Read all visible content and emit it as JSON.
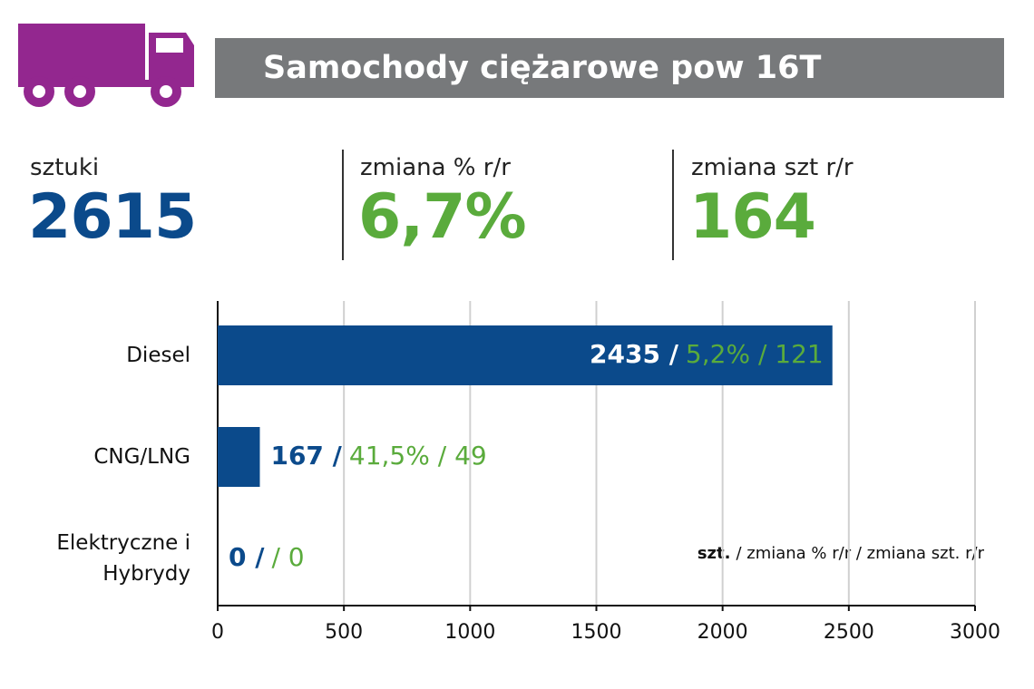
{
  "header": {
    "title": "Samochody ciężarowe pow 16T"
  },
  "stats": [
    {
      "label": "sztuki",
      "value": 2615
    },
    {
      "label": "zmiana % r/r",
      "value": 6.7,
      "value_label": "6,7%"
    },
    {
      "label": "zmiana szt r/r",
      "value": 164
    }
  ],
  "chart_data": {
    "type": "bar",
    "orientation": "horizontal",
    "categories": [
      "Diesel",
      "CNG/LNG",
      "Elektryczne i Hybrydy"
    ],
    "values": [
      2435,
      167,
      0
    ],
    "value_labels": [
      "2435 /",
      "167 /",
      "0 /"
    ],
    "change_labels": [
      "5,2% / 121",
      "41,5% / 49",
      "/ 0"
    ],
    "color": "#0b4a8b",
    "change_color": "#5aab3c",
    "xlim": [
      0,
      3000
    ],
    "xticks": [
      0,
      500,
      1000,
      1500,
      2000,
      2500,
      3000
    ],
    "grid": true,
    "note": {
      "bold": "szt.",
      "text": "/ zmiana % r/r / zmiana szt. r/r"
    }
  }
}
